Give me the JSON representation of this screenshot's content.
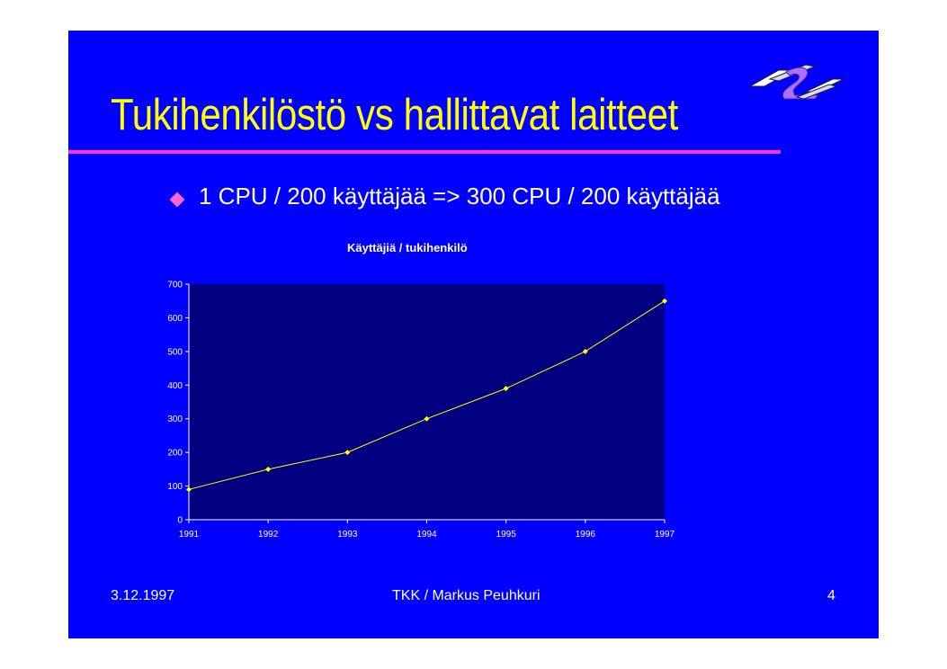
{
  "slide": {
    "title": "Tukihenkilöstö vs hallittavat laitteet",
    "bullet": "1 CPU / 200 käyttäjää => 300 CPU / 200 käyttäjää",
    "footer": {
      "date": "3.12.1997",
      "author": "TKK / Markus Peuhkuri",
      "page": "4"
    },
    "colors": {
      "background": "#0000ff",
      "title": "#ffff00",
      "rule": "#ff33cc",
      "bullet": "#ff66cc",
      "plot_area": "#000080",
      "series_line": "#ffff00"
    }
  },
  "chart_data": {
    "type": "line",
    "title": "Käyttäjiä / tukihenkilö",
    "xlabel": "",
    "ylabel": "",
    "categories": [
      "1991",
      "1992",
      "1993",
      "1994",
      "1995",
      "1996",
      "1997"
    ],
    "series": [
      {
        "values": [
          90,
          150,
          200,
          300,
          390,
          500,
          650
        ]
      }
    ],
    "ylim": [
      0,
      700
    ],
    "yticks": [
      "0",
      "100",
      "200",
      "300",
      "400",
      "500",
      "600",
      "700"
    ],
    "grid": false,
    "legend": "none"
  }
}
